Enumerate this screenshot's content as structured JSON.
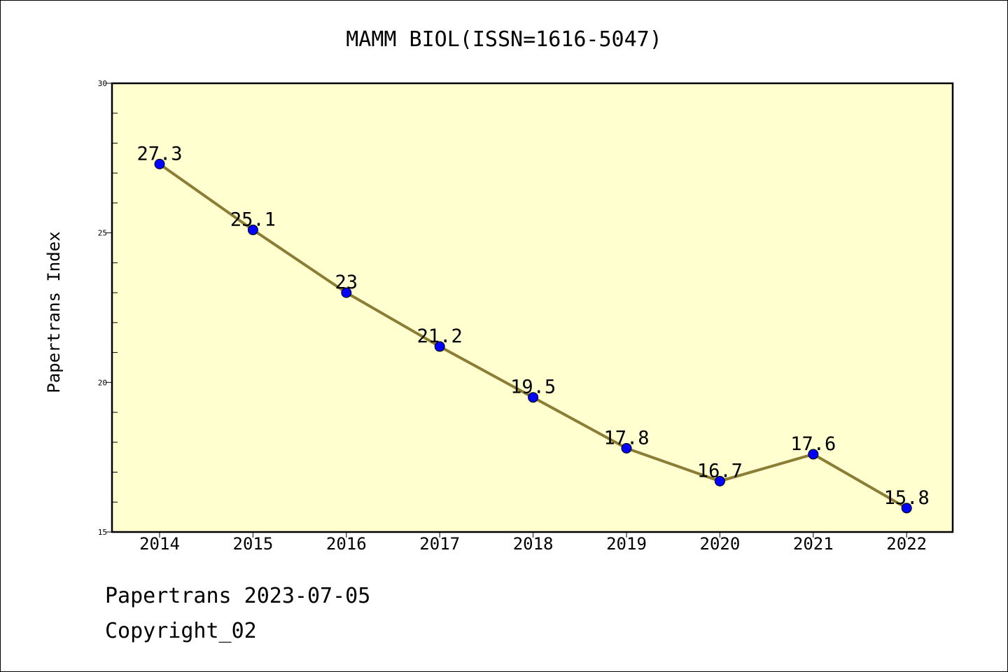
{
  "chart_data": {
    "type": "line",
    "title": "MAMM BIOL(ISSN=1616-5047)",
    "xlabel": "",
    "ylabel": "Papertrans Index",
    "categories": [
      "2014",
      "2015",
      "2016",
      "2017",
      "2018",
      "2019",
      "2020",
      "2021",
      "2022"
    ],
    "values": [
      27.3,
      25.1,
      23,
      21.2,
      19.5,
      17.8,
      16.7,
      17.6,
      15.8
    ],
    "data_labels": [
      "27.3",
      "25.1",
      "23",
      "21.2",
      "19.5",
      "17.8",
      "16.7",
      "17.6",
      "15.8"
    ],
    "ylim": [
      15,
      30
    ],
    "y_ticks": [
      15,
      20,
      25,
      30
    ],
    "y_tick_labels": [
      "15",
      "20",
      "25",
      "30"
    ],
    "y_minor_step": 1,
    "grid": false,
    "legend": "none",
    "colors": {
      "plot_background": "#ffffd0",
      "line": "#8b7d35",
      "marker": "#0000ff",
      "axis": "#000000"
    }
  },
  "footer": {
    "date_line": "Papertrans 2023-07-05",
    "copyright_line": "Copyright_02"
  }
}
